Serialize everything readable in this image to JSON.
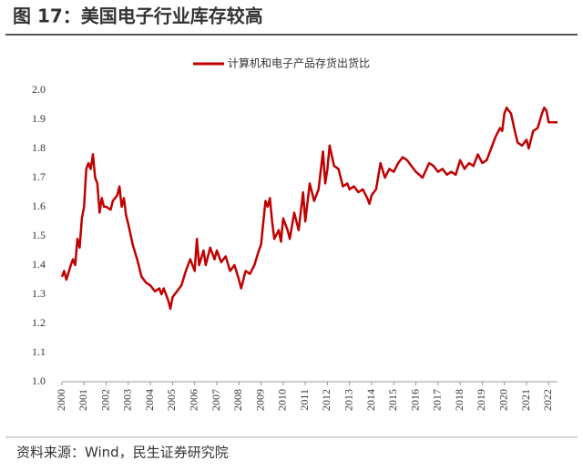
{
  "chart_data": {
    "type": "line",
    "title": "图 17：美国电子行业库存较高",
    "source": "资料来源：Wind，民生证券研究院",
    "x": [
      2000.0,
      2000.1,
      2000.2,
      2000.4,
      2000.5,
      2000.6,
      2000.7,
      2000.8,
      2000.9,
      2001.0,
      2001.1,
      2001.2,
      2001.3,
      2001.4,
      2001.5,
      2001.6,
      2001.7,
      2001.8,
      2001.9,
      2002.0,
      2002.2,
      2002.3,
      2002.5,
      2002.6,
      2002.7,
      2002.8,
      2002.9,
      2003.0,
      2003.2,
      2003.4,
      2003.6,
      2003.8,
      2004.0,
      2004.2,
      2004.4,
      2004.5,
      2004.6,
      2004.8,
      2004.9,
      2005.0,
      2005.2,
      2005.4,
      2005.6,
      2005.8,
      2006.0,
      2006.1,
      2006.2,
      2006.4,
      2006.5,
      2006.7,
      2006.9,
      2007.0,
      2007.2,
      2007.4,
      2007.6,
      2007.8,
      2008.0,
      2008.1,
      2008.3,
      2008.5,
      2008.7,
      2008.9,
      2009.0,
      2009.2,
      2009.3,
      2009.4,
      2009.5,
      2009.6,
      2009.8,
      2009.9,
      2010.0,
      2010.2,
      2010.3,
      2010.5,
      2010.7,
      2010.9,
      2011.0,
      2011.2,
      2011.4,
      2011.6,
      2011.8,
      2011.9,
      2012.0,
      2012.1,
      2012.3,
      2012.5,
      2012.7,
      2012.9,
      2013.0,
      2013.2,
      2013.4,
      2013.6,
      2013.8,
      2013.9,
      2014.0,
      2014.2,
      2014.4,
      2014.6,
      2014.8,
      2015.0,
      2015.2,
      2015.4,
      2015.6,
      2015.8,
      2016.0,
      2016.3,
      2016.6,
      2016.8,
      2017.0,
      2017.2,
      2017.4,
      2017.6,
      2017.8,
      2018.0,
      2018.2,
      2018.4,
      2018.6,
      2018.8,
      2019.0,
      2019.2,
      2019.4,
      2019.6,
      2019.8,
      2019.9,
      2020.0,
      2020.1,
      2020.3,
      2020.5,
      2020.6,
      2020.8,
      2021.0,
      2021.1,
      2021.3,
      2021.5,
      2021.7,
      2021.8,
      2021.9,
      2022.0,
      2022.2,
      2022.4
    ],
    "series": [
      {
        "name": "计算机和电子产品存货出货比",
        "color": "#c00000",
        "values": [
          1.36,
          1.38,
          1.35,
          1.4,
          1.42,
          1.4,
          1.49,
          1.46,
          1.56,
          1.6,
          1.73,
          1.75,
          1.73,
          1.78,
          1.7,
          1.68,
          1.58,
          1.63,
          1.6,
          1.6,
          1.59,
          1.62,
          1.64,
          1.67,
          1.6,
          1.63,
          1.57,
          1.54,
          1.47,
          1.42,
          1.36,
          1.34,
          1.33,
          1.31,
          1.32,
          1.3,
          1.32,
          1.28,
          1.25,
          1.29,
          1.31,
          1.33,
          1.38,
          1.42,
          1.38,
          1.49,
          1.4,
          1.45,
          1.4,
          1.46,
          1.42,
          1.45,
          1.41,
          1.43,
          1.38,
          1.4,
          1.35,
          1.32,
          1.38,
          1.37,
          1.4,
          1.45,
          1.47,
          1.62,
          1.6,
          1.63,
          1.55,
          1.49,
          1.52,
          1.48,
          1.56,
          1.52,
          1.49,
          1.58,
          1.52,
          1.65,
          1.55,
          1.68,
          1.62,
          1.66,
          1.79,
          1.68,
          1.73,
          1.81,
          1.74,
          1.73,
          1.67,
          1.68,
          1.66,
          1.67,
          1.65,
          1.66,
          1.63,
          1.61,
          1.64,
          1.66,
          1.75,
          1.7,
          1.73,
          1.72,
          1.75,
          1.77,
          1.76,
          1.74,
          1.72,
          1.7,
          1.75,
          1.74,
          1.72,
          1.73,
          1.71,
          1.72,
          1.71,
          1.76,
          1.73,
          1.75,
          1.74,
          1.78,
          1.75,
          1.76,
          1.8,
          1.84,
          1.87,
          1.86,
          1.92,
          1.94,
          1.92,
          1.85,
          1.82,
          1.81,
          1.83,
          1.8,
          1.86,
          1.87,
          1.92,
          1.94,
          1.93,
          1.89,
          1.89,
          1.89
        ]
      }
    ],
    "xlim": [
      2000,
      2022.4
    ],
    "xticks": [
      2000,
      2001,
      2002,
      2003,
      2004,
      2005,
      2006,
      2007,
      2008,
      2009,
      2010,
      2011,
      2012,
      2013,
      2014,
      2015,
      2016,
      2017,
      2018,
      2019,
      2020,
      2021,
      2022
    ],
    "ylim": [
      1,
      2
    ],
    "yticks": [
      {
        "value": 1,
        "label": "1.0"
      },
      1.1,
      1.2,
      1.3,
      1.4,
      1.5,
      1.6,
      1.7,
      1.8,
      1.9,
      {
        "value": 2,
        "label": "2.0"
      }
    ]
  }
}
